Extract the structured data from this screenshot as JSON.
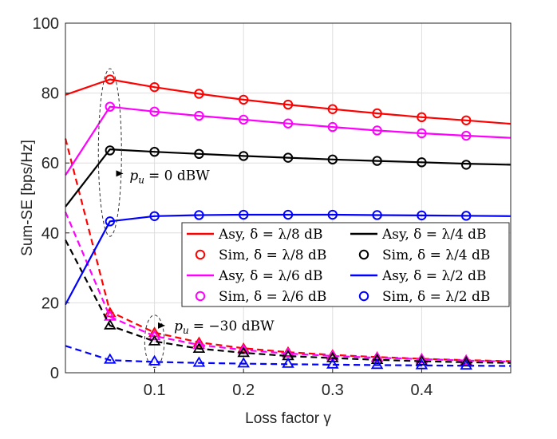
{
  "chart_data": {
    "type": "line",
    "title": "",
    "xlabel": "Loss factor γ",
    "ylabel": "Sum-SE [bps/Hz]",
    "xlim": [
      0,
      0.5
    ],
    "ylim": [
      0,
      100
    ],
    "xticks": [
      0.1,
      0.2,
      0.3,
      0.4
    ],
    "xtick_labels": [
      "0.1",
      "0.2",
      "0.3",
      "0.4"
    ],
    "yticks": [
      0,
      20,
      40,
      60,
      80,
      100
    ],
    "ytick_labels": [
      "0",
      "20",
      "40",
      "60",
      "80",
      "100"
    ],
    "grid": true,
    "sim_x": [
      0.05,
      0.1,
      0.15,
      0.2,
      0.25,
      0.3,
      0.35,
      0.4,
      0.45
    ],
    "series": [
      {
        "id": "l8",
        "color": "#ff0000",
        "asy_label": "Asy, δ = λ/8 dB",
        "sim_label": "Sim, δ = λ/8 dB",
        "high": {
          "asy_x": [
            0,
            0.05,
            0.1,
            0.15,
            0.2,
            0.25,
            0.3,
            0.35,
            0.4,
            0.45,
            0.5
          ],
          "asy_y": [
            79.5,
            83.9,
            81.7,
            79.8,
            78.1,
            76.7,
            75.4,
            74.2,
            73.1,
            72.2,
            71.2
          ],
          "sim_y": [
            83.9,
            81.7,
            79.8,
            78.1,
            76.7,
            75.4,
            74.2,
            73.1,
            72.2
          ]
        },
        "low": {
          "asy_x": [
            0,
            0.05,
            0.1,
            0.15,
            0.2,
            0.25,
            0.3,
            0.35,
            0.4,
            0.45,
            0.5
          ],
          "asy_y": [
            67,
            17.5,
            11.5,
            8.7,
            7.0,
            5.9,
            5.1,
            4.5,
            4.0,
            3.6,
            3.3
          ],
          "sim_y": [
            17.0,
            11.3,
            8.5,
            6.8,
            5.7,
            4.9,
            4.3,
            3.8,
            3.4
          ]
        }
      },
      {
        "id": "l6",
        "color": "#ff00ff",
        "asy_label": "Asy, δ = λ/6 dB",
        "sim_label": "Sim, δ = λ/6 dB",
        "high": {
          "asy_x": [
            0,
            0.05,
            0.1,
            0.15,
            0.2,
            0.25,
            0.3,
            0.35,
            0.4,
            0.45,
            0.5
          ],
          "asy_y": [
            56.5,
            76.1,
            74.7,
            73.5,
            72.4,
            71.3,
            70.3,
            69.3,
            68.5,
            67.8,
            67.2
          ],
          "sim_y": [
            76.1,
            74.7,
            73.5,
            72.4,
            71.3,
            70.3,
            69.3,
            68.5,
            67.8
          ]
        },
        "low": {
          "asy_x": [
            0,
            0.05,
            0.1,
            0.15,
            0.2,
            0.25,
            0.3,
            0.35,
            0.4,
            0.45,
            0.5
          ],
          "asy_y": [
            46,
            16.0,
            10.5,
            8.0,
            6.5,
            5.5,
            4.8,
            4.3,
            3.9,
            3.5,
            3.2
          ],
          "sim_y": [
            16.0,
            10.4,
            7.9,
            6.4,
            5.4,
            4.7,
            4.2,
            3.8,
            3.4
          ]
        }
      },
      {
        "id": "l4",
        "color": "#000000",
        "asy_label": "Asy, δ = λ/4 dB",
        "sim_label": "Sim, δ = λ/4 dB",
        "high": {
          "asy_x": [
            0,
            0.05,
            0.1,
            0.15,
            0.2,
            0.25,
            0.3,
            0.35,
            0.4,
            0.45,
            0.5
          ],
          "asy_y": [
            47.5,
            63.9,
            63.2,
            62.6,
            62.0,
            61.5,
            61.0,
            60.6,
            60.2,
            59.8,
            59.5
          ],
          "sim_y": [
            63.6,
            63.2,
            62.6,
            62.0,
            61.5,
            61.0,
            60.6,
            60.2,
            59.5
          ]
        },
        "low": {
          "asy_x": [
            0,
            0.05,
            0.1,
            0.15,
            0.2,
            0.25,
            0.3,
            0.35,
            0.4,
            0.45,
            0.5
          ],
          "asy_y": [
            38,
            13.5,
            9.0,
            6.9,
            5.7,
            4.8,
            4.2,
            3.7,
            3.3,
            3.0,
            2.8
          ],
          "sim_y": [
            13.5,
            8.9,
            6.8,
            5.6,
            4.7,
            4.1,
            3.6,
            3.2,
            2.9
          ]
        }
      },
      {
        "id": "l2",
        "color": "#0000ff",
        "asy_label": "Asy, δ = λ/2 dB",
        "sim_label": "Sim, δ = λ/2 dB",
        "high": {
          "asy_x": [
            0,
            0.05,
            0.1,
            0.15,
            0.2,
            0.25,
            0.3,
            0.35,
            0.4,
            0.45,
            0.5
          ],
          "asy_y": [
            19.5,
            43.3,
            44.8,
            45.1,
            45.2,
            45.2,
            45.2,
            45.1,
            45.0,
            44.9,
            44.8
          ],
          "sim_y": [
            43.3,
            44.8,
            45.1,
            45.2,
            45.2,
            45.2,
            45.1,
            45.0,
            44.9
          ]
        },
        "low": {
          "asy_x": [
            0,
            0.05,
            0.1,
            0.15,
            0.2,
            0.25,
            0.3,
            0.35,
            0.4,
            0.45,
            0.5
          ],
          "asy_y": [
            7.7,
            3.6,
            3.1,
            2.8,
            2.6,
            2.45,
            2.3,
            2.2,
            2.1,
            2.0,
            1.95
          ],
          "sim_y": [
            3.7,
            3.2,
            2.8,
            2.6,
            2.5,
            2.3,
            2.2,
            2.1,
            2.0
          ]
        }
      }
    ],
    "legend": {
      "placement": "center-right",
      "order": [
        "l8",
        "l4",
        "l6",
        "l2"
      ]
    },
    "annotations": [
      {
        "id": "high",
        "text": "p_u = 0 dBW",
        "pu_sym": "p",
        "pu_sub": "u",
        "pu_value": "= 0 dBW",
        "ellipse_center": [
          0.05,
          63
        ],
        "ellipse_radius": [
          0.013,
          24
        ],
        "arrow_to": [
          0.065,
          57
        ],
        "text_anchor": [
          0.072,
          56.5
        ]
      },
      {
        "id": "low",
        "text": "p_u = −30 dBW",
        "pu_sym": "p",
        "pu_sub": "u",
        "pu_value": "= −30 dBW",
        "ellipse_center": [
          0.1,
          9
        ],
        "ellipse_radius": [
          0.011,
          7.5
        ],
        "arrow_to": [
          0.112,
          13.5
        ],
        "text_anchor": [
          0.122,
          13.5
        ]
      }
    ]
  }
}
